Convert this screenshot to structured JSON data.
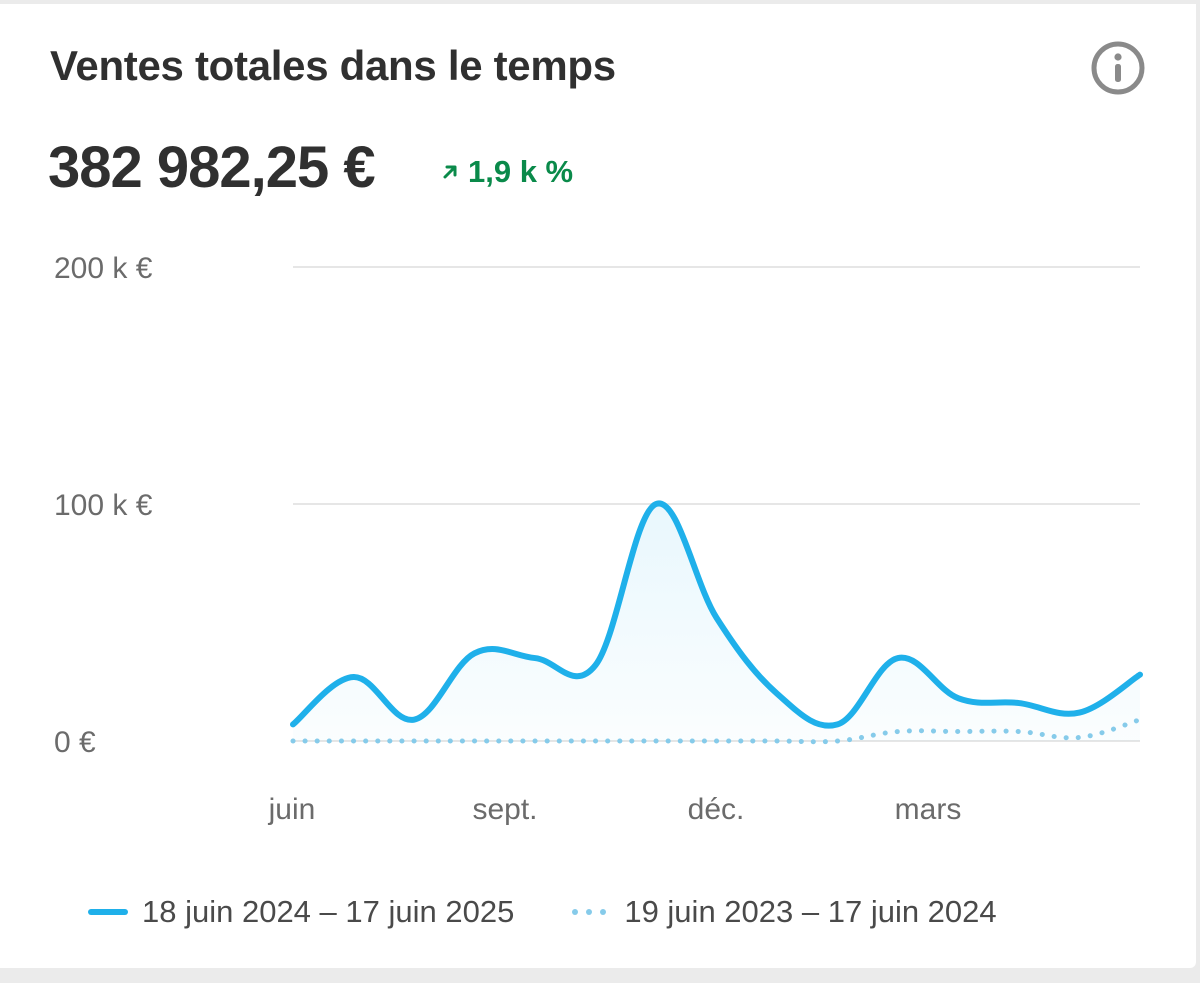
{
  "card": {
    "title": "Ventes totales dans le temps",
    "metric_value": "382 982,25 €",
    "delta_value": "1,9 k %",
    "info_icon": "info-circle-icon",
    "delta_icon": "arrow-up-right-icon"
  },
  "colors": {
    "series_current": "#1fb0ea",
    "series_previous": "#86cbea",
    "delta_positive": "#0a8a4a",
    "gridline": "#e6e6e6"
  },
  "chart_data": {
    "type": "line",
    "x_tick_labels": [
      "juin",
      "sept.",
      "déc.",
      "mars"
    ],
    "y_tick_labels": [
      "200 k €",
      "100 k €",
      "0 €"
    ],
    "y_tick_values": [
      200000,
      100000,
      0
    ],
    "ylim": [
      0,
      200000
    ],
    "grid": true,
    "legend_position": "bottom",
    "series": [
      {
        "name": "18 juin 2024 – 17 juin 2025",
        "style": "solid",
        "area_fill": true,
        "values": [
          7000,
          27000,
          9000,
          37000,
          35000,
          32000,
          100000,
          52000,
          20000,
          7000,
          35000,
          18000,
          16000,
          12000,
          28000
        ]
      },
      {
        "name": "19 juin 2023 – 17 juin 2024",
        "style": "dotted",
        "area_fill": false,
        "values": [
          0,
          0,
          0,
          0,
          0,
          0,
          0,
          0,
          0,
          0,
          4000,
          4000,
          4000,
          1500,
          9000
        ]
      }
    ]
  }
}
